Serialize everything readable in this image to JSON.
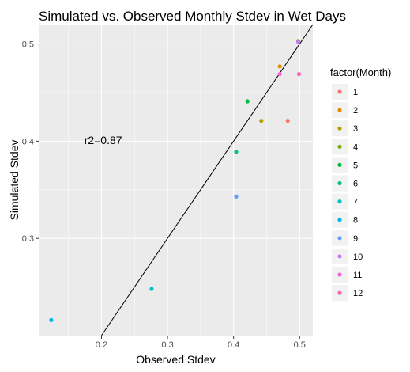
{
  "chart_data": {
    "type": "scatter",
    "title": "Simulated vs. Observed Monthly Stdev in Wet Days",
    "xlabel": "Observed Stdev",
    "ylabel": "Simulated Stdev",
    "xlim": [
      0.105,
      0.52
    ],
    "ylim": [
      0.2,
      0.52
    ],
    "x_ticks": [
      0.2,
      0.3,
      0.4,
      0.5
    ],
    "x_tick_labels": [
      "0.2",
      "0.3",
      "0.4",
      "0.5"
    ],
    "y_ticks": [
      0.3,
      0.4,
      0.5
    ],
    "y_tick_labels": [
      "0.3",
      "0.4",
      "0.5"
    ],
    "grid": true,
    "background": "#ebebeb",
    "annotation": "r2=0.87",
    "reference_line": "y = x",
    "legend": {
      "title": "factor(Month)",
      "placement": "right",
      "entries": [
        "1",
        "2",
        "3",
        "4",
        "5",
        "6",
        "7",
        "8",
        "9",
        "10",
        "11",
        "12"
      ]
    },
    "points": [
      {
        "month": "1",
        "x": 0.482,
        "y": 0.421,
        "color": "#F8766D"
      },
      {
        "month": "2",
        "x": 0.47,
        "y": 0.477,
        "color": "#DE8C00"
      },
      {
        "month": "3",
        "x": 0.442,
        "y": 0.421,
        "color": "#B79F00"
      },
      {
        "month": "4",
        "x": 0.498,
        "y": 0.503,
        "color": "#7CAE00"
      },
      {
        "month": "5",
        "x": 0.421,
        "y": 0.441,
        "color": "#00BA38"
      },
      {
        "month": "6",
        "x": 0.404,
        "y": 0.389,
        "color": "#00C08B"
      },
      {
        "month": "7",
        "x": 0.276,
        "y": 0.248,
        "color": "#00BFC4"
      },
      {
        "month": "8",
        "x": 0.124,
        "y": 0.216,
        "color": "#00B4F0"
      },
      {
        "month": "9",
        "x": 0.404,
        "y": 0.343,
        "color": "#619CFF"
      },
      {
        "month": "10",
        "x": 0.498,
        "y": 0.502,
        "color": "#C77CFF"
      },
      {
        "month": "11",
        "x": 0.47,
        "y": 0.469,
        "color": "#F564E3"
      },
      {
        "month": "12",
        "x": 0.499,
        "y": 0.469,
        "color": "#FF64B0"
      }
    ]
  }
}
